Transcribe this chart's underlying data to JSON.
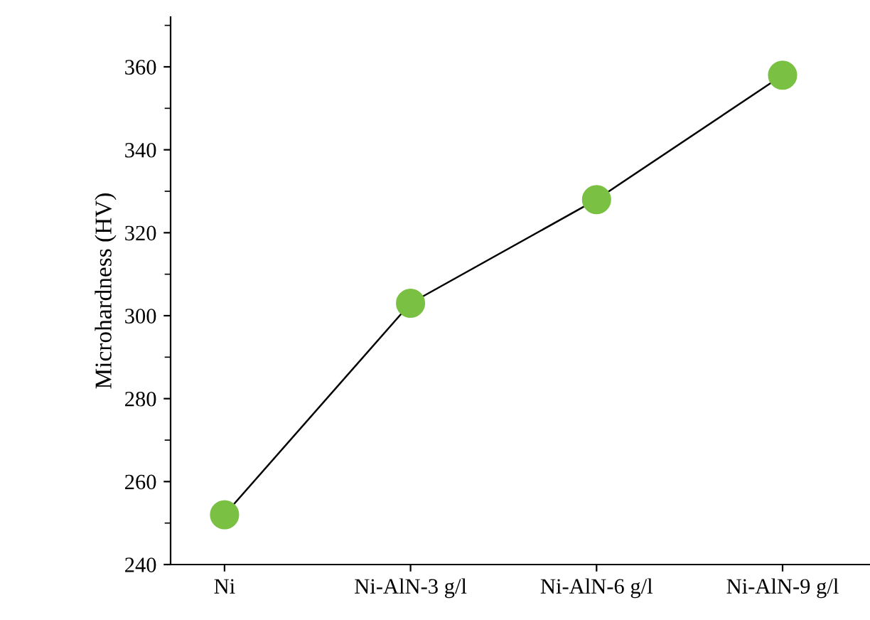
{
  "chart_data": {
    "type": "line",
    "ylabel": "Microhardness (HV)",
    "categories": [
      "Ni",
      "Ni-AlN-3 g/l",
      "Ni-AlN-6 g/l",
      "Ni-AlN-9 g/l"
    ],
    "series": [
      {
        "color": "#7ac143",
        "values": [
          252,
          303,
          328,
          358
        ]
      }
    ],
    "ylim": [
      240,
      372
    ],
    "yticks": [
      240,
      260,
      280,
      300,
      320,
      340,
      360
    ],
    "marker": "circle",
    "line_style": "solid",
    "grid": false,
    "legend": false
  }
}
